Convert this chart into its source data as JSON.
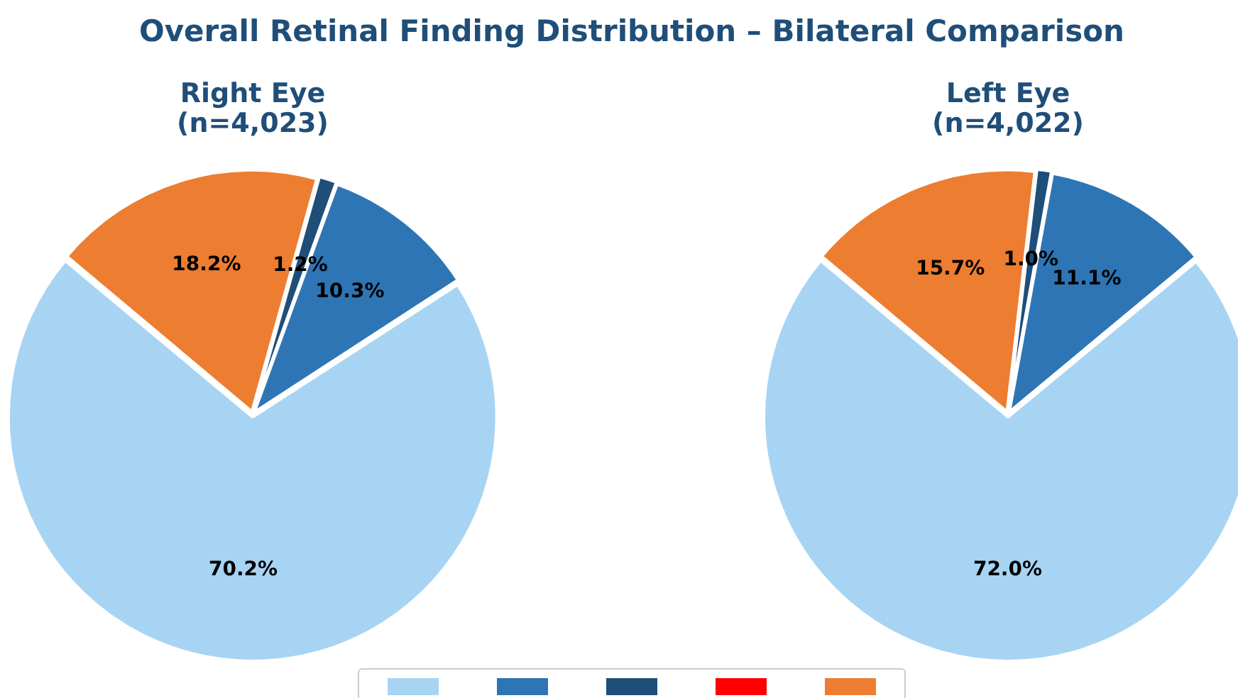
{
  "chart_data": [
    {
      "type": "pie",
      "title": "Overall Retinal Finding Distribution – Bilateral Comparison",
      "subtitle": "Right Eye\n(n=4,023)",
      "categories": [
        null,
        null,
        null,
        null,
        null
      ],
      "values": [
        70.2,
        10.3,
        1.2,
        0,
        18.2
      ],
      "colors": [
        "#a8d4f3",
        "#2e75b6",
        "#1f4e79",
        "#ff0000",
        "#ed7d31"
      ],
      "value_labels": [
        "70.2%",
        "10.3%",
        "1.2%",
        null,
        "18.2%"
      ]
    },
    {
      "type": "pie",
      "subtitle": "Left Eye\n(n=4,022)",
      "categories": [
        null,
        null,
        null,
        null,
        null
      ],
      "values": [
        72.0,
        11.1,
        1.0,
        0,
        15.7
      ],
      "colors": [
        "#a8d4f3",
        "#2e75b6",
        "#1f4e79",
        "#ff0000",
        "#ed7d31"
      ],
      "value_labels": [
        "72.0%",
        "11.1%",
        "1.0%",
        null,
        "15.7%"
      ]
    }
  ]
}
